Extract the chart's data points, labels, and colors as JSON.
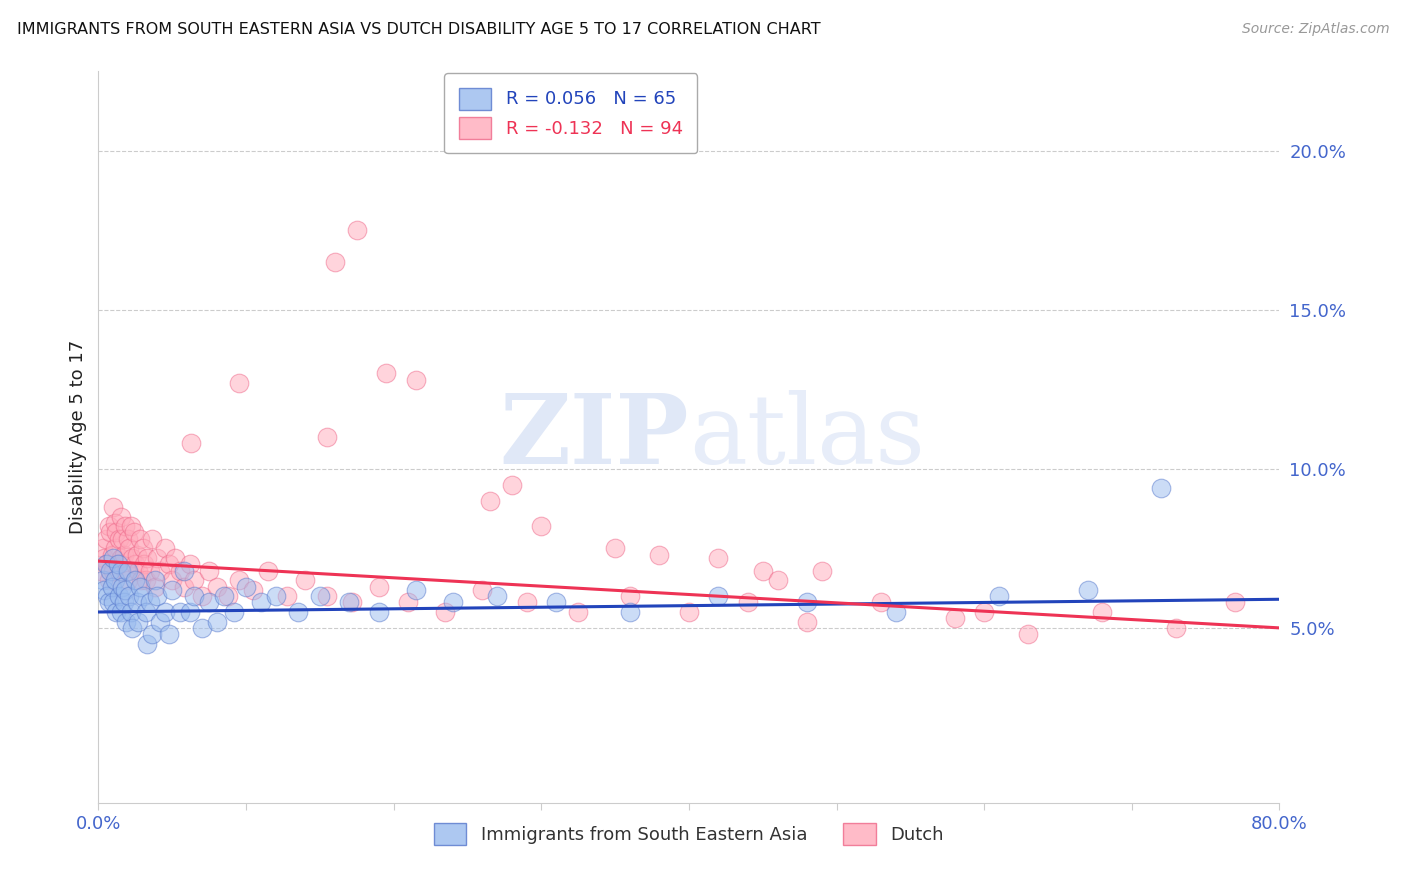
{
  "title": "IMMIGRANTS FROM SOUTH EASTERN ASIA VS DUTCH DISABILITY AGE 5 TO 17 CORRELATION CHART",
  "source": "Source: ZipAtlas.com",
  "ylabel": "Disability Age 5 to 17",
  "yaxis_ticks": [
    0.05,
    0.1,
    0.15,
    0.2
  ],
  "yaxis_labels": [
    "5.0%",
    "10.0%",
    "15.0%",
    "20.0%"
  ],
  "ylim": [
    -0.005,
    0.225
  ],
  "xlim": [
    0.0,
    0.8
  ],
  "blue_label": "Immigrants from South Eastern Asia",
  "pink_label": "Dutch",
  "blue_R": "0.056",
  "blue_N": "65",
  "pink_R": "-0.132",
  "pink_N": "94",
  "blue_color": "#99BBEE",
  "pink_color": "#FFAABB",
  "blue_edge_color": "#5577CC",
  "pink_edge_color": "#EE6688",
  "blue_line_color": "#2244BB",
  "pink_line_color": "#EE3355",
  "title_color": "#111111",
  "tick_color": "#4466CC",
  "watermark_color": "#BBCCEE",
  "background_color": "#FFFFFF",
  "blue_x": [
    0.003,
    0.004,
    0.005,
    0.006,
    0.007,
    0.008,
    0.009,
    0.01,
    0.01,
    0.011,
    0.012,
    0.013,
    0.014,
    0.015,
    0.015,
    0.016,
    0.017,
    0.018,
    0.019,
    0.02,
    0.021,
    0.022,
    0.023,
    0.025,
    0.026,
    0.027,
    0.028,
    0.03,
    0.032,
    0.033,
    0.035,
    0.036,
    0.038,
    0.04,
    0.042,
    0.045,
    0.048,
    0.05,
    0.055,
    0.058,
    0.062,
    0.065,
    0.07,
    0.075,
    0.08,
    0.085,
    0.092,
    0.1,
    0.11,
    0.12,
    0.135,
    0.15,
    0.17,
    0.19,
    0.215,
    0.24,
    0.27,
    0.31,
    0.36,
    0.42,
    0.48,
    0.54,
    0.61,
    0.67,
    0.72
  ],
  "blue_y": [
    0.065,
    0.062,
    0.07,
    0.06,
    0.058,
    0.068,
    0.063,
    0.072,
    0.058,
    0.065,
    0.055,
    0.07,
    0.06,
    0.068,
    0.055,
    0.063,
    0.058,
    0.062,
    0.052,
    0.068,
    0.06,
    0.055,
    0.05,
    0.065,
    0.058,
    0.052,
    0.063,
    0.06,
    0.055,
    0.045,
    0.058,
    0.048,
    0.065,
    0.06,
    0.052,
    0.055,
    0.048,
    0.062,
    0.055,
    0.068,
    0.055,
    0.06,
    0.05,
    0.058,
    0.052,
    0.06,
    0.055,
    0.063,
    0.058,
    0.06,
    0.055,
    0.06,
    0.058,
    0.055,
    0.062,
    0.058,
    0.06,
    0.058,
    0.055,
    0.06,
    0.058,
    0.055,
    0.06,
    0.062,
    0.094
  ],
  "pink_x": [
    0.002,
    0.003,
    0.004,
    0.005,
    0.006,
    0.007,
    0.007,
    0.008,
    0.009,
    0.01,
    0.01,
    0.011,
    0.011,
    0.012,
    0.013,
    0.014,
    0.015,
    0.015,
    0.016,
    0.017,
    0.018,
    0.019,
    0.02,
    0.02,
    0.021,
    0.022,
    0.023,
    0.024,
    0.025,
    0.026,
    0.027,
    0.028,
    0.029,
    0.03,
    0.031,
    0.032,
    0.033,
    0.035,
    0.036,
    0.038,
    0.04,
    0.042,
    0.045,
    0.048,
    0.05,
    0.052,
    0.055,
    0.058,
    0.062,
    0.065,
    0.07,
    0.075,
    0.08,
    0.088,
    0.095,
    0.105,
    0.115,
    0.128,
    0.14,
    0.155,
    0.172,
    0.19,
    0.21,
    0.235,
    0.26,
    0.29,
    0.325,
    0.36,
    0.4,
    0.44,
    0.48,
    0.53,
    0.58,
    0.63,
    0.68,
    0.73,
    0.77,
    0.215,
    0.28,
    0.16,
    0.175,
    0.38,
    0.45,
    0.195,
    0.265,
    0.42,
    0.46,
    0.35,
    0.3,
    0.155,
    0.095,
    0.063,
    0.49,
    0.6
  ],
  "pink_y": [
    0.068,
    0.075,
    0.072,
    0.078,
    0.07,
    0.082,
    0.065,
    0.08,
    0.073,
    0.088,
    0.068,
    0.083,
    0.075,
    0.08,
    0.07,
    0.078,
    0.085,
    0.072,
    0.078,
    0.073,
    0.082,
    0.068,
    0.078,
    0.065,
    0.075,
    0.082,
    0.072,
    0.08,
    0.07,
    0.073,
    0.068,
    0.078,
    0.065,
    0.075,
    0.07,
    0.065,
    0.072,
    0.068,
    0.078,
    0.063,
    0.072,
    0.068,
    0.075,
    0.07,
    0.065,
    0.072,
    0.068,
    0.063,
    0.07,
    0.065,
    0.06,
    0.068,
    0.063,
    0.06,
    0.065,
    0.062,
    0.068,
    0.06,
    0.065,
    0.06,
    0.058,
    0.063,
    0.058,
    0.055,
    0.062,
    0.058,
    0.055,
    0.06,
    0.055,
    0.058,
    0.052,
    0.058,
    0.053,
    0.048,
    0.055,
    0.05,
    0.058,
    0.128,
    0.095,
    0.165,
    0.175,
    0.073,
    0.068,
    0.13,
    0.09,
    0.072,
    0.065,
    0.075,
    0.082,
    0.11,
    0.127,
    0.108,
    0.068,
    0.055
  ]
}
